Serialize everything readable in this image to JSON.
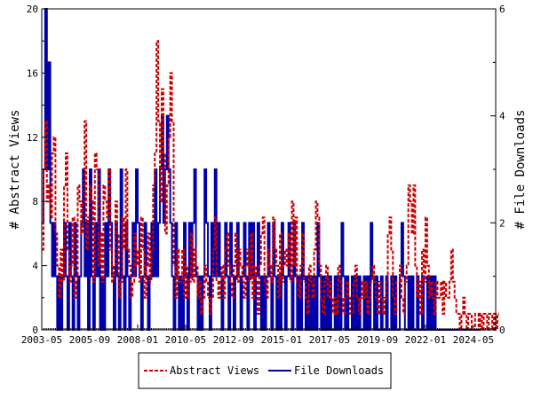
{
  "chart_data": {
    "type": "line",
    "title": "",
    "ylabel_left": "# Abstract Views",
    "ylabel_right": "# File Downloads",
    "ylim_left": [
      0,
      20
    ],
    "ylim_right": [
      0,
      6
    ],
    "yticks_left": [
      "0",
      "4",
      "8",
      "12",
      "16",
      "20"
    ],
    "yticks_right": [
      "0",
      "2",
      "4",
      "6"
    ],
    "x_tick_labels": [
      "2003-05",
      "2005-09",
      "2008-01",
      "2010-05",
      "2012-09",
      "2015-01",
      "2017-05",
      "2019-09",
      "2022-01",
      "2024-05"
    ],
    "x_range": [
      "2003-05",
      "2025-06"
    ],
    "grid": false,
    "legend_position": "bottom",
    "colors": {
      "abstract_views": "#cc0000",
      "file_downloads": "#0000aa"
    },
    "series": [
      {
        "name": "Abstract Views",
        "axis": "left",
        "line_style": "dashed",
        "start": "2003-05",
        "values": [
          5,
          10,
          13,
          8,
          9,
          7,
          11,
          12,
          6,
          4,
          2,
          5,
          3,
          9,
          11,
          5,
          3,
          4,
          7,
          2,
          3,
          9,
          8,
          6,
          8,
          13,
          5,
          7,
          9,
          8,
          3,
          11,
          10,
          4,
          6,
          3,
          9,
          8,
          7,
          10,
          5,
          3,
          4,
          8,
          6,
          2,
          3,
          7,
          5,
          10,
          5,
          4,
          2,
          3,
          6,
          4,
          5,
          3,
          7,
          5,
          2,
          4,
          6,
          3,
          5,
          9,
          11,
          18,
          13,
          8,
          15,
          11,
          6,
          9,
          12,
          16,
          13,
          4,
          2,
          5,
          3,
          3,
          5,
          2,
          4,
          2,
          3,
          6,
          3,
          5,
          4,
          2,
          3,
          1,
          2,
          4,
          3,
          2,
          1,
          2,
          5,
          7,
          3,
          2,
          3,
          4,
          2,
          5,
          6,
          4,
          3,
          2,
          4,
          6,
          3,
          5,
          4,
          3,
          2,
          4,
          5,
          3,
          6,
          2,
          4,
          3,
          1,
          4,
          6,
          7,
          3,
          2,
          5,
          4,
          3,
          7,
          5,
          4,
          2,
          6,
          3,
          4,
          5,
          4,
          6,
          3,
          8,
          4,
          7,
          3,
          2,
          4,
          6,
          3,
          2,
          1,
          4,
          3,
          2,
          5,
          8,
          7,
          4,
          2,
          1,
          3,
          4,
          2,
          3,
          2,
          1,
          2,
          1,
          4,
          3,
          2,
          1,
          2,
          3,
          2,
          1,
          1,
          3,
          4,
          2,
          1,
          2,
          3,
          2,
          3,
          1,
          2,
          3,
          4,
          3,
          2,
          1,
          3,
          2,
          1,
          2,
          3,
          6,
          7,
          5,
          2,
          1,
          3,
          3,
          4,
          2,
          1,
          3,
          4,
          9,
          8,
          6,
          9,
          4,
          2,
          3,
          1,
          5,
          3,
          7,
          4,
          2,
          3,
          2,
          1,
          3,
          2,
          2,
          3,
          1,
          3,
          2,
          2,
          3,
          5,
          3,
          2,
          1,
          1,
          0,
          1,
          2,
          1,
          0,
          1,
          1,
          0,
          0,
          1,
          1,
          0,
          1,
          0,
          1,
          1,
          0,
          1,
          1,
          0,
          1,
          0,
          1
        ]
      },
      {
        "name": "File Downloads",
        "axis": "right",
        "line_style": "solid",
        "start": "2003-05",
        "values": [
          2,
          3,
          6,
          3,
          5,
          2,
          1,
          2,
          1,
          0,
          1,
          0,
          1,
          2,
          1,
          0,
          2,
          1,
          0,
          2,
          1,
          0,
          1,
          2,
          3,
          1,
          2,
          0,
          3,
          1,
          0,
          2,
          1,
          3,
          0,
          1,
          0,
          2,
          1,
          3,
          2,
          1,
          0,
          2,
          1,
          0,
          3,
          1,
          0,
          2,
          1,
          0,
          1,
          2,
          1,
          3,
          2,
          1,
          0,
          1,
          2,
          1,
          0,
          1,
          2,
          1,
          3,
          1,
          2,
          3,
          4,
          2,
          3,
          4,
          3,
          2,
          1,
          0,
          2,
          1,
          0,
          1,
          0,
          2,
          1,
          0,
          2,
          1,
          2,
          3,
          1,
          0,
          1,
          0,
          1,
          3,
          2,
          1,
          0,
          2,
          1,
          3,
          1,
          2,
          1,
          0,
          1,
          2,
          1,
          0,
          2,
          1,
          0,
          1,
          2,
          1,
          0,
          1,
          2,
          1,
          0,
          2,
          1,
          2,
          0,
          1,
          2,
          1,
          0,
          1,
          0,
          1,
          2,
          1,
          0,
          2,
          1,
          0,
          1,
          0,
          2,
          1,
          0,
          1,
          2,
          1,
          0,
          2,
          1,
          0,
          1,
          0,
          2,
          1,
          0,
          1,
          0,
          1,
          0,
          1,
          0,
          2,
          1,
          0,
          1,
          0,
          1,
          0,
          1,
          0,
          0,
          1,
          0,
          1,
          0,
          2,
          1,
          0,
          1,
          0,
          0,
          1,
          0,
          1,
          0,
          1,
          0,
          0,
          1,
          0,
          1,
          0,
          2,
          1,
          0,
          1,
          0,
          0,
          1,
          0,
          0,
          1,
          0,
          0,
          1,
          0,
          1,
          0,
          0,
          1,
          2,
          1,
          0,
          0,
          1,
          0,
          1,
          0,
          0,
          1,
          0,
          0,
          1,
          0,
          0,
          1,
          0,
          1,
          0,
          1,
          0,
          0,
          0,
          0,
          0,
          0,
          0,
          0,
          0,
          0,
          0,
          0,
          0,
          0,
          0,
          0,
          0,
          0,
          0,
          0,
          0,
          0,
          0,
          0,
          0,
          0
        ]
      }
    ]
  }
}
